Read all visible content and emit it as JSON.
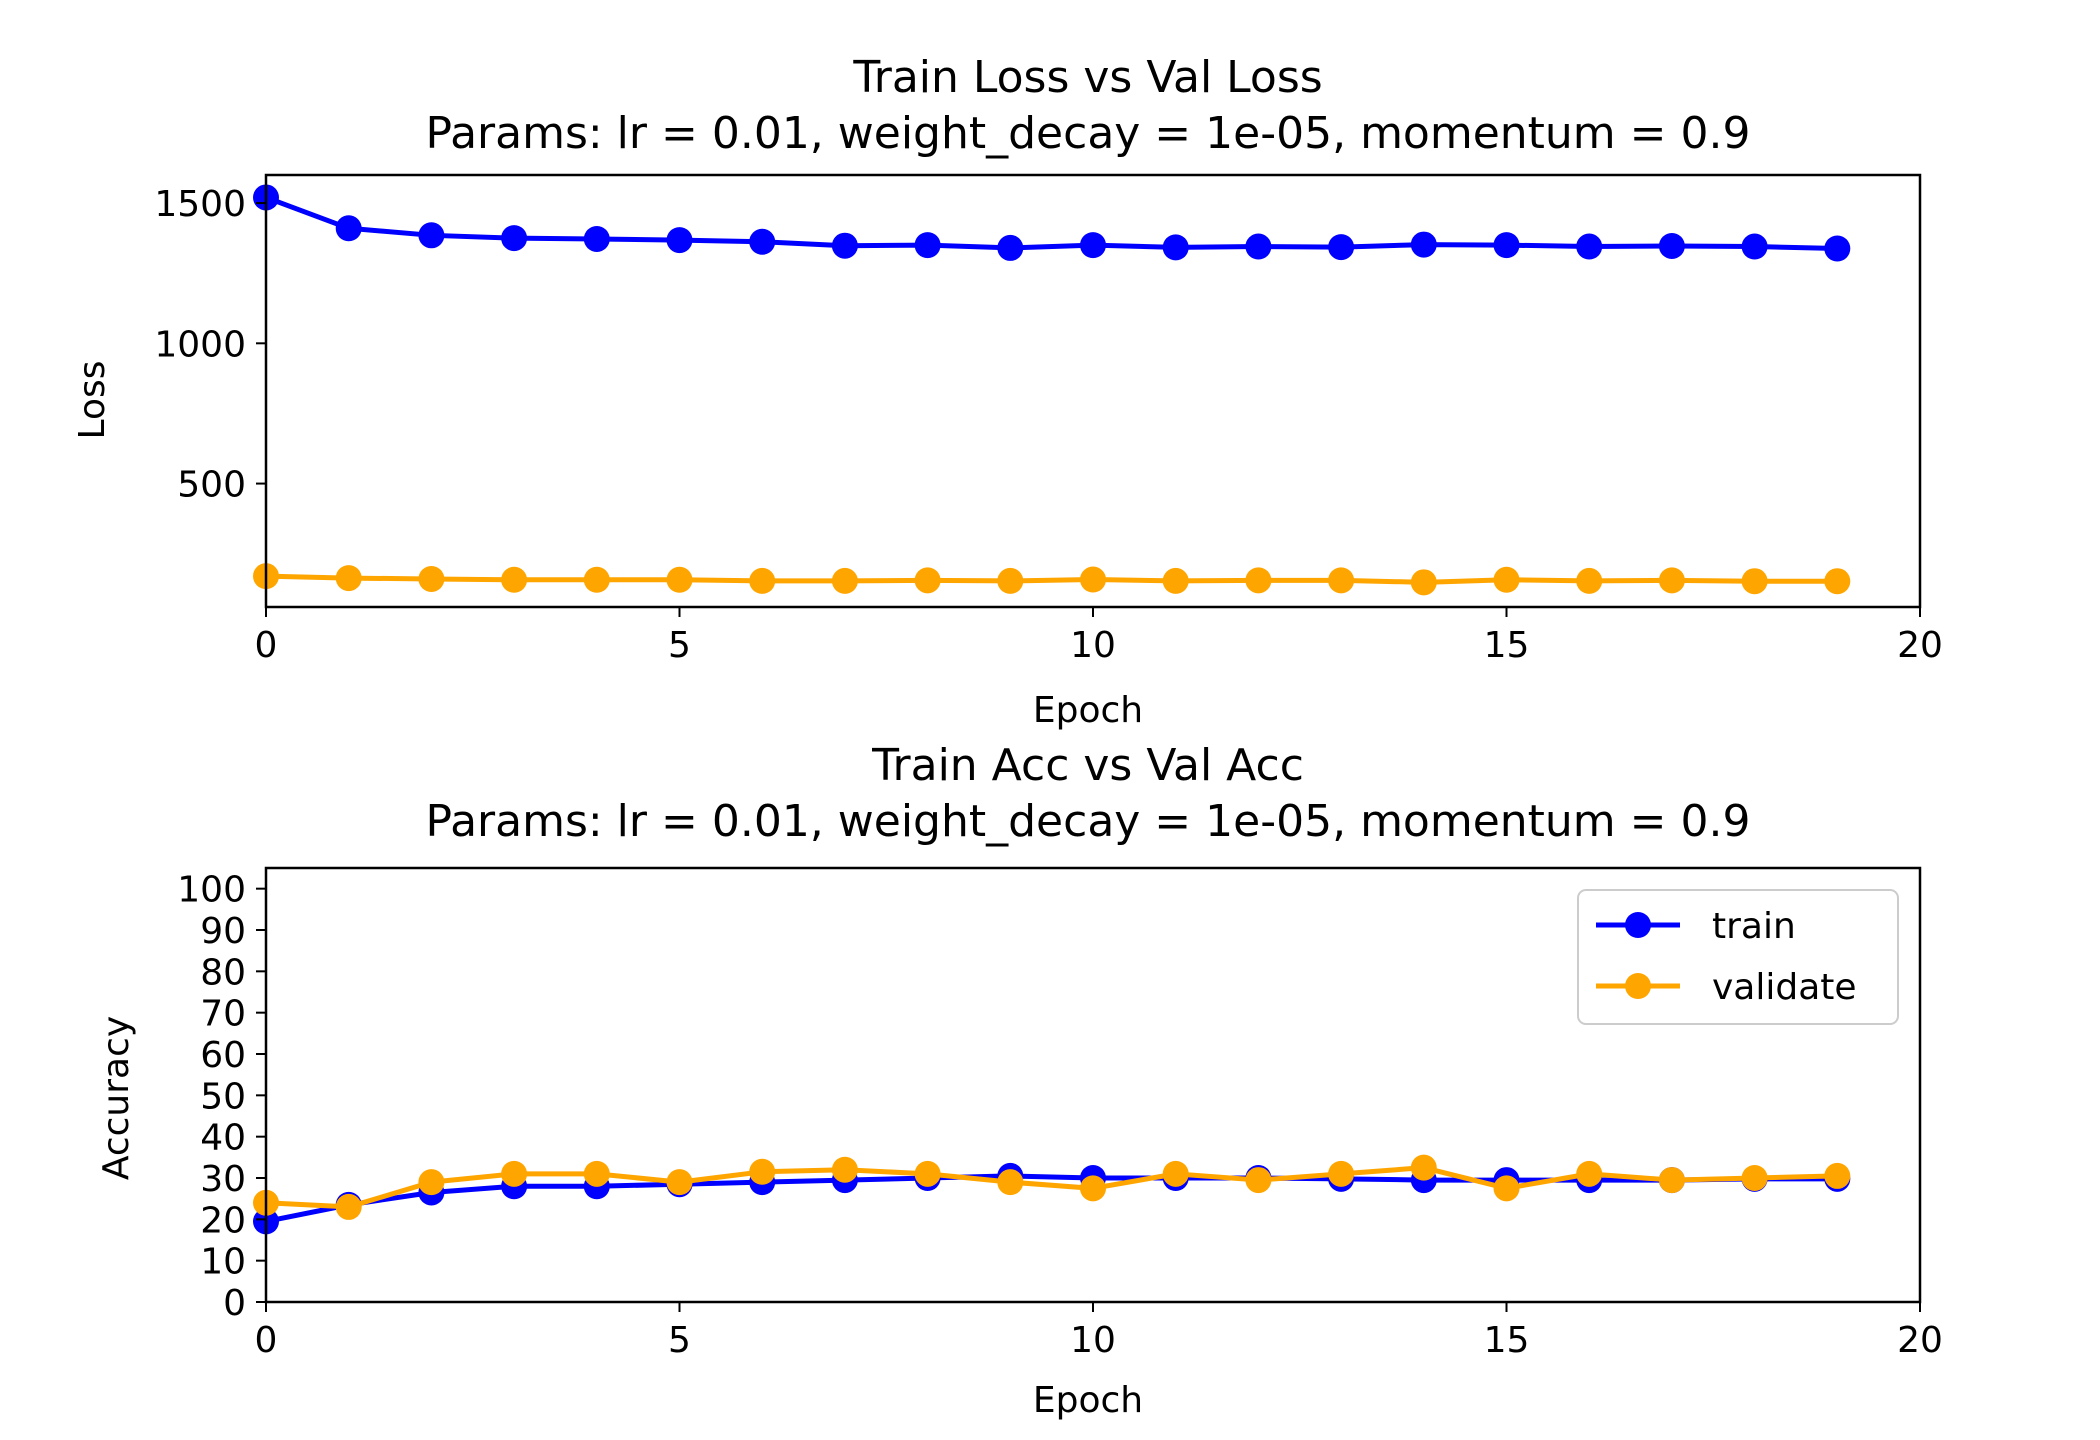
{
  "colors": {
    "train": "#0000ff",
    "validate": "#ffa500"
  },
  "chart_data": [
    {
      "type": "line",
      "title": "Train Loss vs Val Loss",
      "subtitle": "Params: lr = 0.01, weight_decay = 1e-05, momentum = 0.9",
      "xlabel": "Epoch",
      "ylabel": "Loss",
      "xlim": [
        0,
        20
      ],
      "ylim": [
        60,
        1600
      ],
      "xticks": [
        0,
        5,
        10,
        15,
        20
      ],
      "yticks": [
        500,
        1000,
        1500
      ],
      "grid": false,
      "legend": null,
      "x": [
        0,
        1,
        2,
        3,
        4,
        5,
        6,
        7,
        8,
        9,
        10,
        11,
        12,
        13,
        14,
        15,
        16,
        17,
        18,
        19
      ],
      "series": [
        {
          "name": "train",
          "color": "#0000ff",
          "values": [
            1520,
            1410,
            1385,
            1375,
            1372,
            1368,
            1362,
            1348,
            1350,
            1340,
            1350,
            1342,
            1345,
            1343,
            1352,
            1350,
            1345,
            1347,
            1345,
            1338
          ]
        },
        {
          "name": "validate",
          "color": "#ffa500",
          "values": [
            170,
            163,
            160,
            157,
            157,
            157,
            153,
            153,
            155,
            153,
            158,
            153,
            155,
            155,
            148,
            157,
            153,
            155,
            152,
            152
          ]
        }
      ]
    },
    {
      "type": "line",
      "title": "Train Acc vs Val Acc",
      "subtitle": "Params: lr = 0.01, weight_decay = 1e-05, momentum = 0.9",
      "xlabel": "Epoch",
      "ylabel": "Accuracy",
      "xlim": [
        0,
        20
      ],
      "ylim": [
        0,
        105
      ],
      "xticks": [
        0,
        5,
        10,
        15,
        20
      ],
      "yticks": [
        0,
        10,
        20,
        30,
        40,
        50,
        60,
        70,
        80,
        90,
        100
      ],
      "grid": false,
      "legend": "upper right",
      "x": [
        0,
        1,
        2,
        3,
        4,
        5,
        6,
        7,
        8,
        9,
        10,
        11,
        12,
        13,
        14,
        15,
        16,
        17,
        18,
        19
      ],
      "series": [
        {
          "name": "train",
          "color": "#0000ff",
          "values": [
            19.5,
            23.5,
            26.5,
            28,
            28,
            28.5,
            29,
            29.5,
            30,
            30.5,
            30,
            30,
            30,
            29.8,
            29.5,
            29.5,
            29.5,
            29.5,
            29.8,
            29.8
          ]
        },
        {
          "name": "validate",
          "color": "#ffa500",
          "values": [
            24,
            23,
            29,
            31,
            31,
            29,
            31.5,
            32,
            31,
            29,
            27.5,
            31,
            29.5,
            31,
            32.5,
            27.5,
            31,
            29.5,
            30,
            30.5
          ]
        }
      ]
    }
  ]
}
